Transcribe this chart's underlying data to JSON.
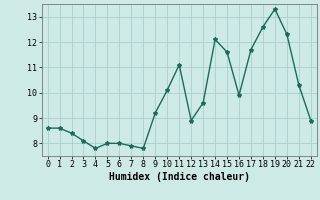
{
  "x": [
    0,
    1,
    2,
    3,
    4,
    5,
    6,
    7,
    8,
    9,
    10,
    11,
    12,
    13,
    14,
    15,
    16,
    17,
    18,
    19,
    20,
    21,
    22
  ],
  "y": [
    8.6,
    8.6,
    8.4,
    8.1,
    7.8,
    8.0,
    8.0,
    7.9,
    7.8,
    9.2,
    10.1,
    11.1,
    8.9,
    9.6,
    12.1,
    11.6,
    9.9,
    11.7,
    12.6,
    13.3,
    12.3,
    10.3,
    8.9
  ],
  "line_color": "#1a6b5a",
  "marker": "*",
  "marker_size": 3,
  "bg_color": "#ceeae7",
  "grid_color": "#aacfcc",
  "xlabel": "Humidex (Indice chaleur)",
  "ylim": [
    7.5,
    13.5
  ],
  "xlim": [
    -0.5,
    22.5
  ],
  "yticks": [
    8,
    9,
    10,
    11,
    12,
    13
  ],
  "xticks": [
    0,
    1,
    2,
    3,
    4,
    5,
    6,
    7,
    8,
    9,
    10,
    11,
    12,
    13,
    14,
    15,
    16,
    17,
    18,
    19,
    20,
    21,
    22
  ],
  "xlabel_fontsize": 7,
  "tick_fontsize": 6,
  "line_width": 1.0
}
